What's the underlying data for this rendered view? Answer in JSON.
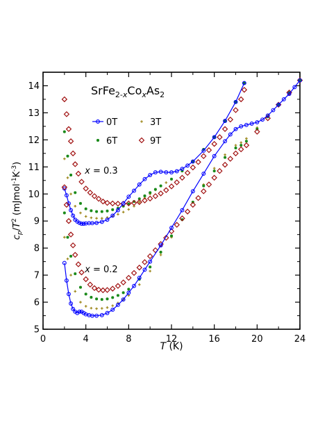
{
  "chart_data": {
    "type": "scatter",
    "title": "",
    "annotation": "SrFe2-xCoxAs2",
    "xlabel": "T (K)",
    "ylabel": "cp/T2 (mJmol-1K-3)",
    "xlim": [
      0,
      24
    ],
    "ylim": [
      5,
      14.5
    ],
    "xticks": [
      0,
      4,
      8,
      12,
      16,
      20,
      24
    ],
    "yticks": [
      5,
      6,
      7,
      8,
      9,
      10,
      11,
      12,
      13,
      14
    ],
    "grid": false,
    "legend_position": "top-left",
    "group_labels": [
      {
        "text": "x = 0.3",
        "x": 3.9,
        "y": 10.75
      },
      {
        "text": "x = 0.2",
        "x": 3.9,
        "y": 7.1
      }
    ],
    "series": [
      {
        "name": "0T",
        "composition": "x = 0.3",
        "color": "#0000ff",
        "marker": "open-circle",
        "connected": true,
        "x": [
          2.0,
          2.2,
          2.4,
          2.6,
          2.8,
          3.0,
          3.2,
          3.4,
          3.6,
          3.8,
          4.0,
          4.3,
          4.6,
          5.0,
          5.5,
          6.0,
          6.5,
          7.0,
          7.5,
          8.0,
          8.5,
          9.0,
          9.5,
          10.0,
          10.5,
          11.0,
          11.5,
          12.0,
          12.5,
          13.0,
          13.5,
          14.0,
          15.0,
          16.0,
          17.0,
          18.0,
          18.8
        ],
        "y": [
          10.2,
          9.95,
          9.65,
          9.4,
          9.2,
          9.05,
          8.98,
          8.93,
          8.9,
          8.9,
          8.91,
          8.92,
          8.92,
          8.93,
          8.97,
          9.05,
          9.2,
          9.4,
          9.65,
          9.9,
          10.12,
          10.35,
          10.55,
          10.7,
          10.8,
          10.82,
          10.8,
          10.8,
          10.84,
          10.93,
          11.05,
          11.2,
          11.6,
          12.1,
          12.7,
          13.4,
          14.1
        ]
      },
      {
        "name": "3T",
        "composition": "x = 0.3",
        "color": "#a08a20",
        "marker": "small-plus",
        "connected": false,
        "x": [
          2.0,
          2.3,
          2.6,
          3.0,
          3.5,
          4.0,
          4.5,
          5.0,
          5.5,
          6.0,
          6.5,
          7.0,
          7.5,
          8.0,
          8.5,
          9.0,
          9.5,
          10.0,
          10.5,
          11.0,
          11.5,
          12.0,
          13.0,
          14.0,
          15.0,
          16.0,
          17.0,
          18.0,
          18.8
        ],
        "y": [
          11.3,
          10.6,
          10.0,
          9.55,
          9.3,
          9.17,
          9.12,
          9.1,
          9.1,
          9.13,
          9.18,
          9.25,
          9.33,
          9.43,
          9.55,
          9.7,
          9.85,
          10.0,
          10.15,
          10.3,
          10.42,
          10.55,
          10.85,
          11.2,
          11.65,
          12.1,
          12.7,
          13.4,
          14.1
        ]
      },
      {
        "name": "6T",
        "composition": "x = 0.3",
        "color": "#1a8a1a",
        "marker": "small-star",
        "connected": false,
        "x": [
          2.0,
          2.3,
          2.6,
          3.0,
          3.5,
          4.0,
          4.5,
          5.0,
          5.5,
          6.0,
          6.5,
          7.0,
          7.5,
          8.0,
          8.5,
          9.0,
          9.5,
          10.0,
          10.5,
          11.0,
          12.0,
          13.0,
          14.0,
          15.0,
          16.0,
          17.0,
          18.0,
          18.8
        ],
        "y": [
          12.3,
          11.4,
          10.7,
          10.05,
          9.65,
          9.45,
          9.38,
          9.35,
          9.35,
          9.37,
          9.42,
          9.47,
          9.55,
          9.63,
          9.72,
          9.82,
          9.93,
          10.05,
          10.17,
          10.3,
          10.55,
          10.85,
          11.2,
          11.65,
          12.1,
          12.7,
          13.4,
          14.1
        ]
      },
      {
        "name": "9T",
        "composition": "x = 0.3",
        "color": "#a01010",
        "marker": "open-diamond",
        "connected": false,
        "x": [
          2.0,
          2.2,
          2.4,
          2.6,
          2.8,
          3.0,
          3.3,
          3.6,
          4.0,
          4.4,
          4.8,
          5.2,
          5.6,
          6.0,
          6.5,
          7.0,
          7.5,
          8.0,
          8.5,
          9.0,
          9.5,
          10.0,
          10.5,
          11.0,
          11.5,
          12.0,
          12.5,
          13.0,
          13.5,
          14.0,
          14.5,
          15.0,
          15.5,
          16.0,
          16.5,
          17.0,
          17.5,
          18.0,
          18.5,
          18.8
        ],
        "y": [
          13.5,
          12.95,
          12.4,
          11.95,
          11.5,
          11.1,
          10.75,
          10.45,
          10.2,
          10.05,
          9.92,
          9.82,
          9.72,
          9.67,
          9.65,
          9.64,
          9.64,
          9.65,
          9.67,
          9.7,
          9.76,
          9.83,
          9.92,
          10.02,
          10.14,
          10.28,
          10.43,
          10.6,
          10.78,
          10.98,
          11.18,
          11.4,
          11.62,
          11.85,
          12.1,
          12.4,
          12.75,
          13.1,
          13.5,
          13.85
        ]
      },
      {
        "name": "0T",
        "composition": "x = 0.2",
        "color": "#0000ff",
        "marker": "open-circle",
        "connected": true,
        "x": [
          2.0,
          2.2,
          2.4,
          2.6,
          2.8,
          3.0,
          3.2,
          3.4,
          3.6,
          3.8,
          4.0,
          4.3,
          4.6,
          5.0,
          5.5,
          6.0,
          6.5,
          7.0,
          7.5,
          8.0,
          8.5,
          9.0,
          9.5,
          10.0,
          11.0,
          12.0,
          13.0,
          14.0,
          15.0,
          16.0,
          17.0,
          17.5,
          18.0,
          18.5,
          19.0,
          19.5,
          20.0,
          20.5,
          21.0,
          21.5,
          22.0,
          22.5,
          23.0,
          23.5,
          24.0
        ],
        "y": [
          7.45,
          6.8,
          6.3,
          5.95,
          5.75,
          5.65,
          5.6,
          5.65,
          5.65,
          5.6,
          5.55,
          5.52,
          5.5,
          5.5,
          5.52,
          5.6,
          5.72,
          5.9,
          6.1,
          6.35,
          6.6,
          6.9,
          7.2,
          7.5,
          8.1,
          8.75,
          9.4,
          10.1,
          10.75,
          11.4,
          11.95,
          12.2,
          12.4,
          12.5,
          12.55,
          12.6,
          12.65,
          12.75,
          12.9,
          13.1,
          13.3,
          13.5,
          13.7,
          13.95,
          14.2
        ]
      },
      {
        "name": "3T",
        "composition": "x = 0.2",
        "color": "#a08a20",
        "marker": "small-plus",
        "connected": false,
        "x": [
          2.0,
          2.3,
          2.6,
          3.0,
          3.5,
          4.0,
          4.5,
          5.0,
          5.5,
          6.0,
          6.5,
          7.0,
          7.5,
          8.0,
          9.0,
          10.0,
          11.0,
          12.0,
          13.0,
          14.0,
          15.0,
          16.0,
          17.0,
          18.0,
          18.5,
          19.0,
          20.0,
          21.0,
          22.0,
          23.0,
          24.0
        ],
        "y": [
          8.4,
          7.6,
          7.0,
          6.4,
          6.0,
          5.85,
          5.78,
          5.76,
          5.77,
          5.8,
          5.87,
          5.97,
          6.1,
          6.25,
          6.65,
          7.15,
          7.75,
          8.4,
          9.05,
          9.7,
          10.35,
          10.95,
          11.45,
          11.8,
          11.9,
          12.05,
          12.45,
          12.9,
          13.3,
          13.75,
          14.2
        ]
      },
      {
        "name": "6T",
        "composition": "x = 0.2",
        "color": "#1a8a1a",
        "marker": "small-star",
        "connected": false,
        "x": [
          2.0,
          2.3,
          2.6,
          3.0,
          3.5,
          4.0,
          4.5,
          5.0,
          5.5,
          6.0,
          6.5,
          7.0,
          7.5,
          8.0,
          9.0,
          10.0,
          11.0,
          12.0,
          13.0,
          14.0,
          15.0,
          16.0,
          17.0,
          18.0,
          18.5,
          19.0,
          20.0,
          21.0,
          22.0,
          23.0,
          24.0
        ],
        "y": [
          9.3,
          8.4,
          7.7,
          7.05,
          6.55,
          6.3,
          6.18,
          6.12,
          6.1,
          6.12,
          6.17,
          6.25,
          6.35,
          6.48,
          6.85,
          7.3,
          7.85,
          8.45,
          9.05,
          9.7,
          10.3,
          10.85,
          11.35,
          11.7,
          11.8,
          11.95,
          12.4,
          12.85,
          13.3,
          13.75,
          14.2
        ]
      },
      {
        "name": "9T",
        "composition": "x = 0.2",
        "color": "#a01010",
        "marker": "open-diamond",
        "connected": false,
        "x": [
          2.0,
          2.2,
          2.4,
          2.6,
          2.8,
          3.0,
          3.3,
          3.6,
          4.0,
          4.4,
          4.8,
          5.2,
          5.6,
          6.0,
          6.5,
          7.0,
          7.5,
          8.0,
          8.5,
          9.0,
          9.5,
          10.0,
          10.5,
          11.0,
          11.5,
          12.0,
          12.5,
          13.0,
          13.5,
          14.0,
          14.5,
          15.0,
          15.5,
          16.0,
          16.5,
          17.0,
          17.5,
          18.0,
          18.5,
          19.0,
          20.0,
          21.0,
          22.0,
          23.0,
          24.0
        ],
        "y": [
          10.25,
          9.6,
          9.0,
          8.5,
          8.1,
          7.75,
          7.4,
          7.1,
          6.85,
          6.65,
          6.52,
          6.46,
          6.44,
          6.45,
          6.5,
          6.6,
          6.73,
          6.9,
          7.08,
          7.28,
          7.48,
          7.7,
          7.92,
          8.15,
          8.38,
          8.62,
          8.86,
          9.1,
          9.35,
          9.6,
          9.85,
          10.1,
          10.35,
          10.6,
          10.85,
          11.08,
          11.3,
          11.5,
          11.65,
          11.8,
          12.3,
          12.8,
          13.3,
          13.75,
          14.2
        ]
      }
    ]
  }
}
